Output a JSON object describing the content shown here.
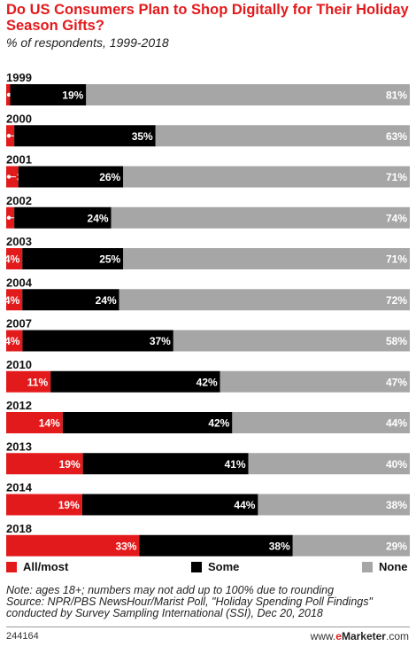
{
  "chart_data": {
    "type": "bar",
    "stacked": true,
    "orientation": "horizontal",
    "title": "Do US Consumers Plan to Shop Digitally for Their Holiday Season Gifts?",
    "subtitle": "% of respondents, 1999-2018",
    "categories": [
      "1999",
      "2000",
      "2001",
      "2002",
      "2003",
      "2004",
      "2007",
      "2010",
      "2012",
      "2013",
      "2014",
      "2018"
    ],
    "series": [
      {
        "name": "All/most",
        "color": "#e31a1c",
        "values": [
          1,
          2,
          3,
          2,
          4,
          4,
          4,
          11,
          14,
          19,
          19,
          33
        ]
      },
      {
        "name": "Some",
        "color": "#000000",
        "values": [
          19,
          35,
          26,
          24,
          25,
          24,
          37,
          42,
          42,
          41,
          44,
          38
        ]
      },
      {
        "name": "None",
        "color": "#a6a6a6",
        "values": [
          81,
          63,
          71,
          74,
          71,
          72,
          58,
          47,
          44,
          40,
          38,
          29
        ]
      }
    ],
    "value_suffix": "%",
    "legend": {
      "position": "bottom"
    },
    "grid": false
  },
  "footer": {
    "note": "Note: ages 18+; numbers may not add up to 100% due to rounding",
    "source_line1": "Source: NPR/PBS NewsHour/Marist Poll, \"Holiday Spending Poll Findings\"",
    "source_line2": "conducted by Survey Sampling International (SSI), Dec 20, 2018",
    "chart_id": "244164",
    "brand_prefix": "www.",
    "brand_e": "e",
    "brand_rest": "Marketer",
    "brand_suffix": ".com"
  }
}
